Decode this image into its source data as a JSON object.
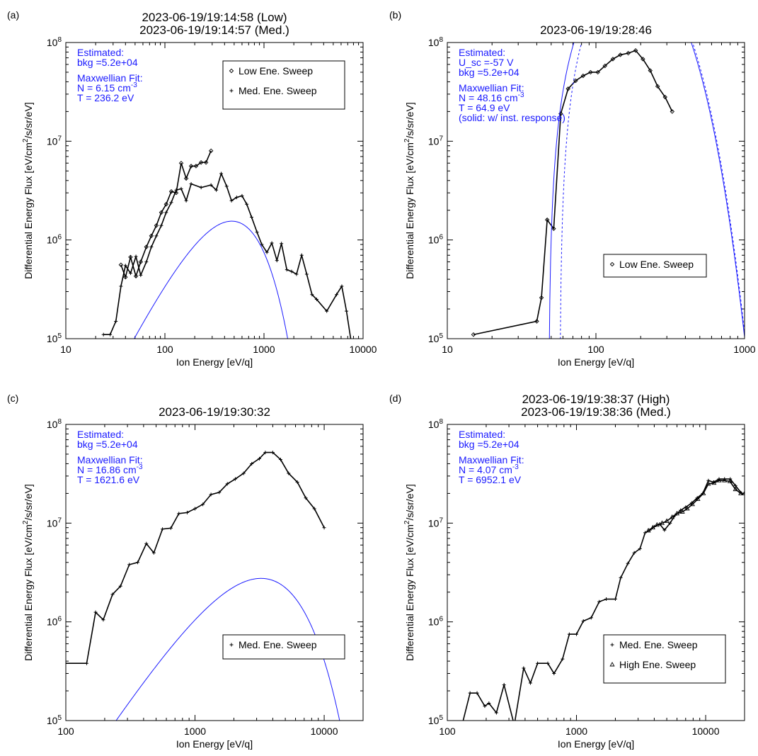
{
  "colors": {
    "data": "#000000",
    "fit": "#1a1aff",
    "annotation": "#1a1aff",
    "frame": "#000000"
  },
  "chart_data": [
    {
      "panel_label": "(a)",
      "type": "line",
      "title": [
        "2023-06-19/19:14:58 (Low)",
        "2023-06-19/19:14:57 (Med.)"
      ],
      "xlabel": "Ion Energy [eV/q]",
      "ylabel_parts": [
        "Differential Energy Flux [eV/cm",
        "2",
        "/s/sr/eV]"
      ],
      "xscale": "log",
      "yscale": "log",
      "xlim": [
        10,
        10000
      ],
      "ylim": [
        100000,
        100000000
      ],
      "xticks": [
        {
          "v": 10,
          "t": "10"
        },
        {
          "v": 100,
          "t": "100"
        },
        {
          "v": 1000,
          "t": "1000"
        },
        {
          "v": 10000,
          "t": "10000"
        }
      ],
      "yticks": [
        {
          "v": 100000,
          "b": "10",
          "e": "5"
        },
        {
          "v": 1000000,
          "b": "10",
          "e": "6"
        },
        {
          "v": 10000000,
          "b": "10",
          "e": "7"
        },
        {
          "v": 100000000,
          "b": "10",
          "e": "8"
        }
      ],
      "annotations": [
        [
          {
            "t": "Estimated:"
          }
        ],
        [
          {
            "t": "bkg =5.2e+04"
          }
        ],
        [],
        [
          {
            "t": "Maxwellian Fit:"
          }
        ],
        [
          {
            "t": "N =  6.15 cm"
          },
          {
            "t": "-3",
            "sup": true
          }
        ],
        [
          {
            "t": "T = 236.2 eV"
          }
        ]
      ],
      "legend": {
        "position": "top-right",
        "entries": [
          {
            "label": "Low Ene. Sweep",
            "marker": "diamond"
          },
          {
            "label": "Med. Ene. Sweep",
            "marker": "plus"
          }
        ]
      },
      "series": [
        {
          "name": "Low Ene. Sweep",
          "marker": "diamond",
          "color": "#000000",
          "x": [
            36,
            40,
            45,
            51,
            57,
            65,
            73,
            82,
            92,
            103,
            116,
            130,
            146,
            164,
            184,
            206,
            232,
            260,
            292
          ],
          "y": [
            560000,
            420000,
            670000,
            430000,
            600000,
            850000,
            1100000,
            1400000,
            1900000,
            2300000,
            3100000,
            3000000,
            6000000,
            4200000,
            5600000,
            5600000,
            6100000,
            6100000,
            8000000
          ]
        },
        {
          "name": "Med. Ene. Sweep",
          "marker": "plus",
          "color": "#000000",
          "x": [
            24,
            28,
            32,
            36,
            40,
            45,
            51,
            57,
            65,
            73,
            82,
            92,
            103,
            116,
            130,
            146,
            164,
            184,
            232,
            292,
            330,
            370,
            420,
            470,
            530,
            600,
            670,
            750,
            850,
            950,
            1070,
            1200,
            1350,
            1500,
            1700,
            1900,
            2130,
            2400,
            2700,
            3050,
            3400,
            4300,
            5400,
            6100,
            6800,
            7500
          ],
          "y": [
            110000,
            110000,
            150000,
            340000,
            550000,
            460000,
            680000,
            440000,
            600000,
            850000,
            1100000,
            1400000,
            1900000,
            2400000,
            3200000,
            3300000,
            2500000,
            3700000,
            3400000,
            3600000,
            3200000,
            4700000,
            3500000,
            2500000,
            2700000,
            2800000,
            2300000,
            1700000,
            1200000,
            900000,
            750000,
            930000,
            620000,
            920000,
            500000,
            480000,
            450000,
            700000,
            450000,
            280000,
            250000,
            190000,
            280000,
            340000,
            190000,
            100000
          ]
        },
        {
          "name": "",
          "line": "fit",
          "color": "#1a1aff",
          "model": {
            "N": 6.15,
            "T": 236.2,
            "A": 30300.0
          }
        }
      ]
    },
    {
      "panel_label": "(b)",
      "type": "line",
      "title": [
        "2023-06-19/19:28:46"
      ],
      "xlabel": "Ion Energy [eV/q]",
      "ylabel_parts": [
        "Differential Energy Flux [eV/cm",
        "2",
        "/s/sr/eV]"
      ],
      "xscale": "log",
      "yscale": "log",
      "xlim": [
        10,
        1000
      ],
      "ylim": [
        100000,
        100000000
      ],
      "xticks": [
        {
          "v": 10,
          "t": "10"
        },
        {
          "v": 100,
          "t": "100"
        },
        {
          "v": 1000,
          "t": "1000"
        }
      ],
      "yticks": [
        {
          "v": 100000,
          "b": "10",
          "e": "5"
        },
        {
          "v": 1000000,
          "b": "10",
          "e": "6"
        },
        {
          "v": 10000000,
          "b": "10",
          "e": "7"
        },
        {
          "v": 100000000,
          "b": "10",
          "e": "8"
        }
      ],
      "annotations": [
        [
          {
            "t": "Estimated:"
          }
        ],
        [
          {
            "t": "U_sc =-57 V"
          }
        ],
        [
          {
            "t": "bkg =5.2e+04"
          }
        ],
        [],
        [
          {
            "t": "Maxwellian Fit:"
          }
        ],
        [
          {
            "t": "N = 48.16 cm"
          },
          {
            "t": "-3",
            "sup": true
          }
        ],
        [
          {
            "t": "T =  64.9 eV"
          }
        ],
        [
          {
            "t": "(solid: w/ inst. response)"
          }
        ]
      ],
      "legend": {
        "position": "bottom-right",
        "entries": [
          {
            "label": "Low Ene. Sweep",
            "marker": "diamond"
          }
        ]
      },
      "series": [
        {
          "name": "Low Ene. Sweep",
          "marker": "diamond",
          "color": "#000000",
          "x": [
            15,
            40,
            43,
            47,
            52,
            58,
            65,
            73,
            82,
            92,
            103,
            115,
            130,
            146,
            165,
            185,
            207,
            232,
            260,
            292,
            326
          ],
          "y": [
            110000,
            150000,
            260000,
            1600000,
            1300000,
            19000000,
            34000000,
            41000000,
            46000000,
            50000000,
            50000000,
            58000000,
            68000000,
            75000000,
            78000000,
            83000000,
            68000000,
            52000000,
            36000000,
            28000000,
            20000000
          ]
        },
        {
          "name": "",
          "line": "fit",
          "color": "#1a1aff",
          "model": {
            "N": 48.16,
            "T": 64.9,
            "A": 2900000.0,
            "U": 48
          }
        },
        {
          "name": "",
          "line": "fit-dashed",
          "color": "#1a1aff",
          "model": {
            "N": 48.16,
            "T": 64.9,
            "A": 2900000.0,
            "U": 57
          }
        }
      ]
    },
    {
      "panel_label": "(c)",
      "type": "line",
      "title": [
        "2023-06-19/19:30:32"
      ],
      "xlabel": "Ion Energy [eV/q]",
      "ylabel_parts": [
        "Differential Energy Flux [eV/cm",
        "2",
        "/s/sr/eV]"
      ],
      "xscale": "log",
      "yscale": "log",
      "xlim": [
        100,
        20000
      ],
      "ylim": [
        100000,
        100000000
      ],
      "xticks": [
        {
          "v": 100,
          "t": "100"
        },
        {
          "v": 1000,
          "t": "1000"
        },
        {
          "v": 10000,
          "t": "10000"
        }
      ],
      "yticks": [
        {
          "v": 100000,
          "b": "10",
          "e": "5"
        },
        {
          "v": 1000000,
          "b": "10",
          "e": "6"
        },
        {
          "v": 10000000,
          "b": "10",
          "e": "7"
        },
        {
          "v": 100000000,
          "b": "10",
          "e": "8"
        }
      ],
      "annotations": [
        [
          {
            "t": "Estimated:"
          }
        ],
        [
          {
            "t": "bkg =5.2e+04"
          }
        ],
        [],
        [
          {
            "t": "Maxwellian Fit:"
          }
        ],
        [
          {
            "t": "N = 16.86 cm"
          },
          {
            "t": "-3",
            "sup": true
          }
        ],
        [
          {
            "t": "T =  1621.6 eV"
          }
        ]
      ],
      "legend": {
        "position": "bottom-right",
        "entries": [
          {
            "label": "Med. Ene. Sweep",
            "marker": "plus"
          }
        ]
      },
      "series": [
        {
          "name": "Med. Ene. Sweep",
          "marker": "plus",
          "color": "#000000",
          "x": [
            100,
            145,
            170,
            195,
            230,
            265,
            310,
            360,
            420,
            480,
            560,
            650,
            750,
            870,
            1000,
            1150,
            1330,
            1540,
            1780,
            2050,
            2380,
            2750,
            3150,
            3500,
            4000,
            4600,
            5300,
            6200,
            7200,
            8400,
            10000
          ],
          "y": [
            380000,
            380000,
            1250000,
            1050000,
            1900000,
            2300000,
            3800000,
            4000000,
            6200000,
            5000000,
            8700000,
            8900000,
            12500000,
            12800000,
            14000000,
            15500000,
            19500000,
            20500000,
            25000000,
            28000000,
            32000000,
            40000000,
            45000000,
            52000000,
            52000000,
            44000000,
            32000000,
            26000000,
            18000000,
            14000000,
            9000000
          ]
        },
        {
          "name": "",
          "line": "fit",
          "color": "#1a1aff",
          "model": {
            "N": 16.86,
            "T": 1621.6,
            "A": 7500.0
          }
        }
      ]
    },
    {
      "panel_label": "(d)",
      "type": "line",
      "title": [
        "2023-06-19/19:38:37 (High)",
        "2023-06-19/19:38:36 (Med.)"
      ],
      "xlabel": "Ion Energy [eV/q]",
      "ylabel_parts": [
        "Differential Energy Flux [eV/cm",
        "2",
        "/s/sr/eV]"
      ],
      "xscale": "log",
      "yscale": "log",
      "xlim": [
        100,
        20000
      ],
      "ylim": [
        100000,
        100000000
      ],
      "xticks": [
        {
          "v": 100,
          "t": "100"
        },
        {
          "v": 1000,
          "t": "1000"
        },
        {
          "v": 10000,
          "t": "10000"
        }
      ],
      "yticks": [
        {
          "v": 100000,
          "b": "10",
          "e": "5"
        },
        {
          "v": 1000000,
          "b": "10",
          "e": "6"
        },
        {
          "v": 10000000,
          "b": "10",
          "e": "7"
        },
        {
          "v": 100000000,
          "b": "10",
          "e": "8"
        }
      ],
      "annotations": [
        [
          {
            "t": "Estimated:"
          }
        ],
        [
          {
            "t": "bkg =5.2e+04"
          }
        ],
        [],
        [
          {
            "t": "Maxwellian Fit:"
          }
        ],
        [
          {
            "t": "N =  4.07 cm"
          },
          {
            "t": "-3",
            "sup": true
          }
        ],
        [
          {
            "t": "T =  6952.1 eV"
          }
        ]
      ],
      "legend": {
        "position": "bottom-right",
        "entries": [
          {
            "label": "Med. Ene. Sweep",
            "marker": "plus"
          },
          {
            "label": "High Ene. Sweep",
            "marker": "triangle"
          }
        ]
      },
      "series": [
        {
          "name": "Med. Ene. Sweep",
          "marker": "plus",
          "color": "#000000",
          "x": [
            130,
            150,
            170,
            195,
            210,
            240,
            275,
            330,
            390,
            440,
            500,
            600,
            670,
            780,
            880,
            1000,
            1130,
            1300,
            1500,
            1700,
            2000,
            2200,
            2500,
            2800,
            3100,
            3400,
            3700,
            4000,
            4400,
            4800,
            5300,
            5800,
            6400,
            7000,
            7800,
            8600,
            9500,
            10500,
            11500,
            12700,
            14000,
            15500,
            17000,
            19000,
            20000
          ],
          "y": [
            90000,
            190000,
            190000,
            140000,
            150000,
            120000,
            230000,
            90000,
            340000,
            240000,
            380000,
            380000,
            300000,
            420000,
            750000,
            750000,
            1020000,
            1100000,
            1600000,
            1700000,
            1700000,
            2800000,
            3900000,
            5000000,
            5500000,
            8000000,
            8500000,
            9200000,
            9800000,
            8500000,
            10000000,
            12000000,
            13500000,
            14500000,
            16000000,
            18000000,
            20000000,
            27000000,
            26000000,
            28000000,
            28000000,
            28000000,
            24000000,
            20000000,
            20000000
          ]
        },
        {
          "name": "High Ene. Sweep",
          "marker": "triangle",
          "color": "#000000",
          "x": [
            3600,
            3900,
            4200,
            4600,
            5000,
            5500,
            6000,
            6600,
            7200,
            7900,
            8700,
            9600,
            10500,
            11600,
            12700,
            14000,
            15400,
            17000,
            18700,
            20000
          ],
          "y": [
            8400000,
            9000000,
            9600000,
            10000000,
            10500000,
            11500000,
            12500000,
            13000000,
            14000000,
            15500000,
            17500000,
            20000000,
            25000000,
            25500000,
            27000000,
            27000000,
            26500000,
            22000000,
            20000000,
            20000000
          ]
        },
        {
          "name": "",
          "line": "fit",
          "color": "#1a1aff",
          "model": {
            "N": 4.07,
            "T": 6952.1,
            "A": 360.0
          }
        }
      ]
    }
  ]
}
